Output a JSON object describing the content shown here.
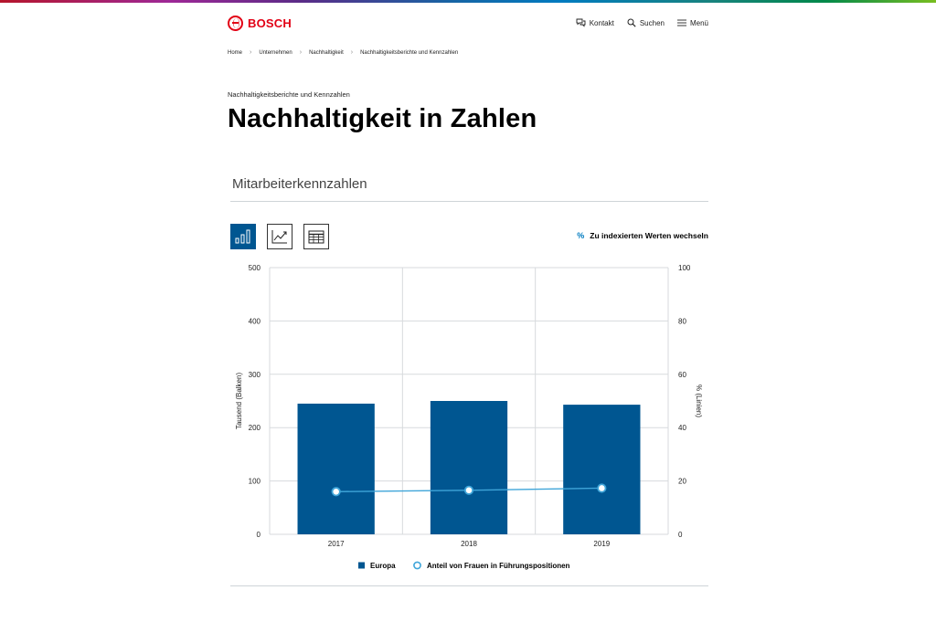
{
  "brand": {
    "name": "BOSCH",
    "accent": "#e20015"
  },
  "nav": {
    "contact": "Kontakt",
    "search": "Suchen",
    "menu": "Menü"
  },
  "breadcrumb": [
    "Home",
    "Unternehmen",
    "Nachhaltigkeit",
    "Nachhaltigkeitsberichte und Kennzahlen"
  ],
  "page": {
    "overline": "Nachhaltigkeitsberichte und Kennzahlen",
    "title": "Nachhaltigkeit in Zahlen",
    "section_title": "Mitarbeiterkennzahlen"
  },
  "controls": {
    "views": [
      "bar-chart-icon",
      "line-chart-icon",
      "table-icon"
    ],
    "active_view": "bar-chart-icon",
    "switch_symbol": "%",
    "switch_label": "Zu indexierten Werten wechseln"
  },
  "colors": {
    "bar": "#005691",
    "line": "#3fa5d9",
    "grid": "#d7dadd"
  },
  "chart_data": {
    "type": "bar",
    "categories": [
      "2017",
      "2018",
      "2019"
    ],
    "series": [
      {
        "name": "Europa",
        "type": "bar",
        "axis": "left",
        "values": [
          245,
          250,
          243
        ]
      },
      {
        "name": "Anteil von Frauen in Führungspositionen",
        "type": "line",
        "axis": "right",
        "values": [
          16,
          16.5,
          17.3
        ]
      }
    ],
    "ylabel": "Tausend (Balken)",
    "ylabel_right": "% (Linien)",
    "ylim": [
      0,
      500
    ],
    "ylim_right": [
      0,
      100
    ],
    "yticks": [
      0,
      100,
      200,
      300,
      400,
      500
    ],
    "yticks_right": [
      0,
      20,
      40,
      60,
      80,
      100
    ],
    "grid": true,
    "legend_position": "bottom"
  }
}
